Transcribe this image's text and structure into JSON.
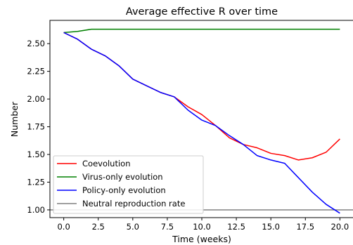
{
  "chart_data": {
    "type": "line",
    "title": "Average effective R over time",
    "xlabel": "Time (weeks)",
    "ylabel": "Number",
    "xlim": [
      -1,
      21
    ],
    "ylim": [
      0.93,
      2.71
    ],
    "xticks": [
      0.0,
      2.5,
      5.0,
      7.5,
      10.0,
      12.5,
      15.0,
      17.5,
      20.0
    ],
    "xtick_labels": [
      "0.0",
      "2.5",
      "5.0",
      "7.5",
      "10.0",
      "12.5",
      "15.0",
      "17.5",
      "20.0"
    ],
    "yticks": [
      1.0,
      1.25,
      1.5,
      1.75,
      2.0,
      2.25,
      2.5
    ],
    "ytick_labels": [
      "1.00",
      "1.25",
      "1.50",
      "1.75",
      "2.00",
      "2.25",
      "2.50"
    ],
    "grid": false,
    "legend_position": "lower-left",
    "series": [
      {
        "name": "Coevolution",
        "color": "#ff0000",
        "x": [
          0,
          1,
          2,
          3,
          4,
          5,
          6,
          7,
          8,
          9,
          10,
          11,
          12,
          13,
          14,
          15,
          16,
          17,
          18,
          19,
          20
        ],
        "values": [
          2.6,
          2.54,
          2.45,
          2.39,
          2.3,
          2.18,
          2.12,
          2.06,
          2.02,
          1.93,
          1.86,
          1.76,
          1.65,
          1.59,
          1.56,
          1.51,
          1.49,
          1.45,
          1.47,
          1.52,
          1.64
        ]
      },
      {
        "name": "Virus-only evolution",
        "color": "#008000",
        "x": [
          0,
          1,
          2,
          3,
          4,
          5,
          6,
          7,
          8,
          9,
          10,
          11,
          12,
          13,
          14,
          15,
          16,
          17,
          18,
          19,
          20
        ],
        "values": [
          2.6,
          2.61,
          2.63,
          2.63,
          2.63,
          2.63,
          2.63,
          2.63,
          2.63,
          2.63,
          2.63,
          2.63,
          2.63,
          2.63,
          2.63,
          2.63,
          2.63,
          2.63,
          2.63,
          2.63,
          2.63
        ]
      },
      {
        "name": "Policy-only evolution",
        "color": "#0000ff",
        "x": [
          0,
          1,
          2,
          3,
          4,
          5,
          6,
          7,
          8,
          9,
          10,
          11,
          12,
          13,
          14,
          15,
          16,
          17,
          18,
          19,
          20
        ],
        "values": [
          2.6,
          2.54,
          2.45,
          2.39,
          2.3,
          2.18,
          2.12,
          2.06,
          2.02,
          1.9,
          1.81,
          1.76,
          1.67,
          1.59,
          1.49,
          1.45,
          1.42,
          1.29,
          1.16,
          1.05,
          0.97
        ]
      },
      {
        "name": "Neutral reproduction rate",
        "color": "#808080",
        "x": [
          -1,
          21
        ],
        "values": [
          1.0,
          1.0
        ]
      }
    ]
  }
}
